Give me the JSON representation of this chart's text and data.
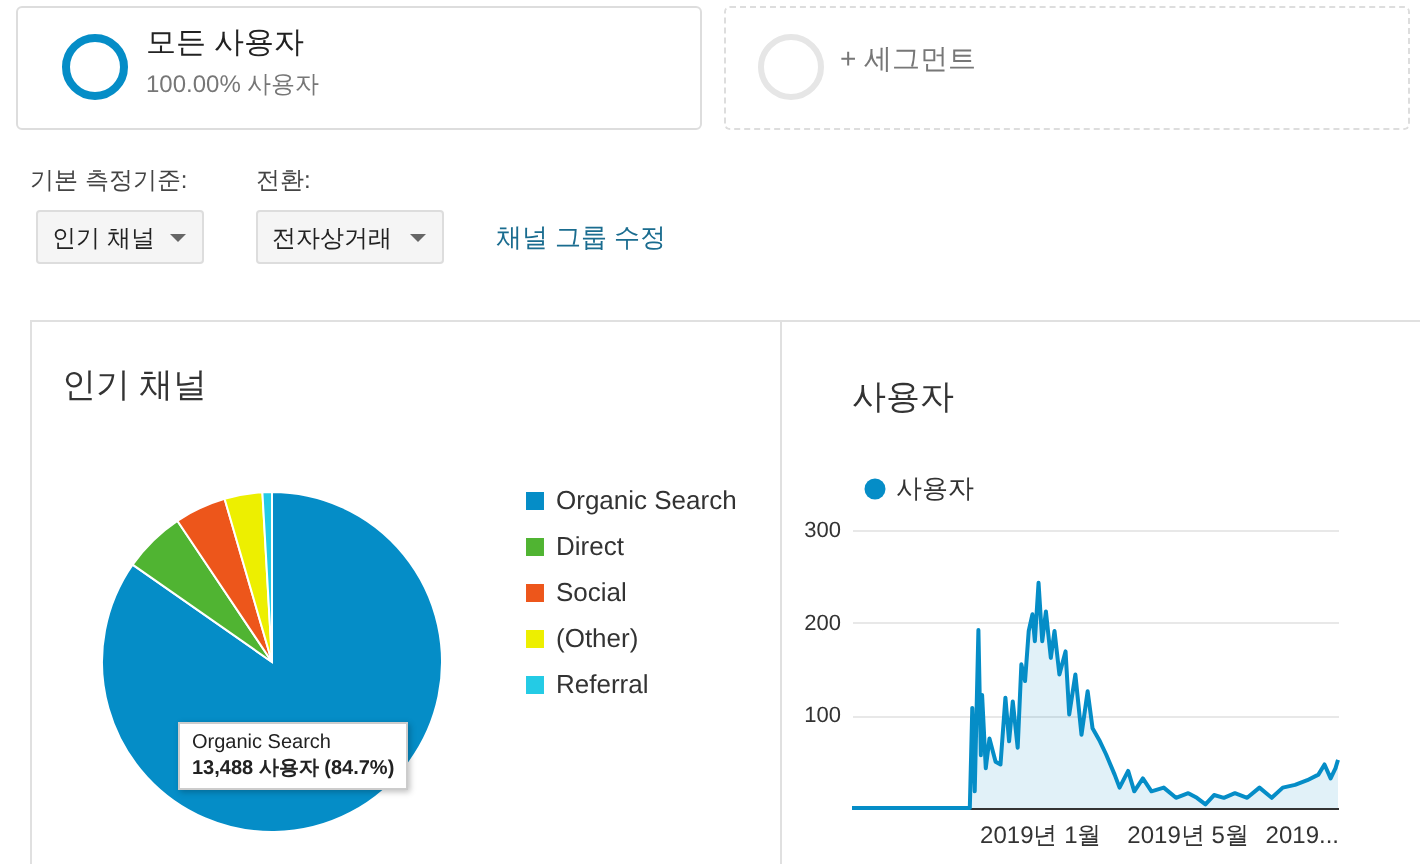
{
  "chart_data": [
    {
      "type": "other",
      "annotations": [
        "모든 사용자",
        "100.00% 사용자",
        "+ 세그먼트",
        "기본 측정기준:",
        "인기 채널",
        "전환:",
        "전자상거래",
        "채널 그룹 수정"
      ]
    },
    {
      "type": "pie",
      "title": "인기 채널",
      "categories": [
        "Organic Search",
        "Direct",
        "Social",
        "(Other)",
        "Referral"
      ],
      "values": [
        84.7,
        5.9,
        4.9,
        3.6,
        0.9
      ],
      "colors": [
        "#058dc7",
        "#50b432",
        "#ed561b",
        "#edef00",
        "#24cbe5"
      ],
      "legend": "right",
      "annotations": [
        "Organic Search\n13,488 사용자 (84.7%)"
      ]
    },
    {
      "type": "area",
      "title": "사용자",
      "legend": "top left",
      "grid": "y",
      "xlim": [
        "2018-08-01",
        "2019-09-01"
      ],
      "ylim": [
        0,
        300
      ],
      "yticks": [
        100,
        200,
        300
      ],
      "xticks": [
        {
          "value": "2019-01-01",
          "label": "2019년 1월"
        },
        {
          "value": "2019-05-01",
          "label": "2019년 5월"
        },
        {
          "value": "2019-09-01",
          "label": "2019..."
        }
      ],
      "series": [
        {
          "name": "사용자",
          "color": "#058dc7",
          "x": [
            "2018-08-01",
            "2018-11-05",
            "2018-11-07",
            "2018-11-09",
            "2018-11-12",
            "2018-11-14",
            "2018-11-15",
            "2018-11-18",
            "2018-11-21",
            "2018-11-26",
            "2018-11-30",
            "2018-12-04",
            "2018-12-07",
            "2018-12-10",
            "2018-12-14",
            "2018-12-17",
            "2018-12-20",
            "2018-12-23",
            "2018-12-26",
            "2018-12-28",
            "2018-12-31",
            "2019-01-03",
            "2019-01-06",
            "2019-01-10",
            "2019-01-13",
            "2019-01-17",
            "2019-01-22",
            "2019-01-25",
            "2019-01-30",
            "2019-02-04",
            "2019-02-09",
            "2019-02-13",
            "2019-02-19",
            "2019-02-24",
            "2019-03-03",
            "2019-03-07",
            "2019-03-14",
            "2019-03-19",
            "2019-03-26",
            "2019-04-02",
            "2019-04-12",
            "2019-04-22",
            "2019-05-02",
            "2019-05-09",
            "2019-05-16",
            "2019-05-23",
            "2019-05-31",
            "2019-06-09",
            "2019-06-19",
            "2019-06-29",
            "2019-07-09",
            "2019-07-18",
            "2019-07-28",
            "2019-08-07",
            "2019-08-16",
            "2019-08-21",
            "2019-08-26",
            "2019-08-30",
            "2019-09-01"
          ],
          "values": [
            0,
            0,
            108,
            18,
            192,
            57,
            122,
            43,
            75,
            50,
            47,
            119,
            72,
            115,
            65,
            155,
            137,
            191,
            209,
            180,
            243,
            180,
            212,
            162,
            191,
            144,
            169,
            101,
            144,
            79,
            126,
            86,
            72,
            58,
            36,
            22,
            40,
            18,
            32,
            18,
            22,
            11,
            16,
            11,
            4,
            14,
            11,
            16,
            11,
            22,
            11,
            22,
            25,
            30,
            36,
            47,
            32,
            43,
            52
          ]
        }
      ]
    }
  ]
}
